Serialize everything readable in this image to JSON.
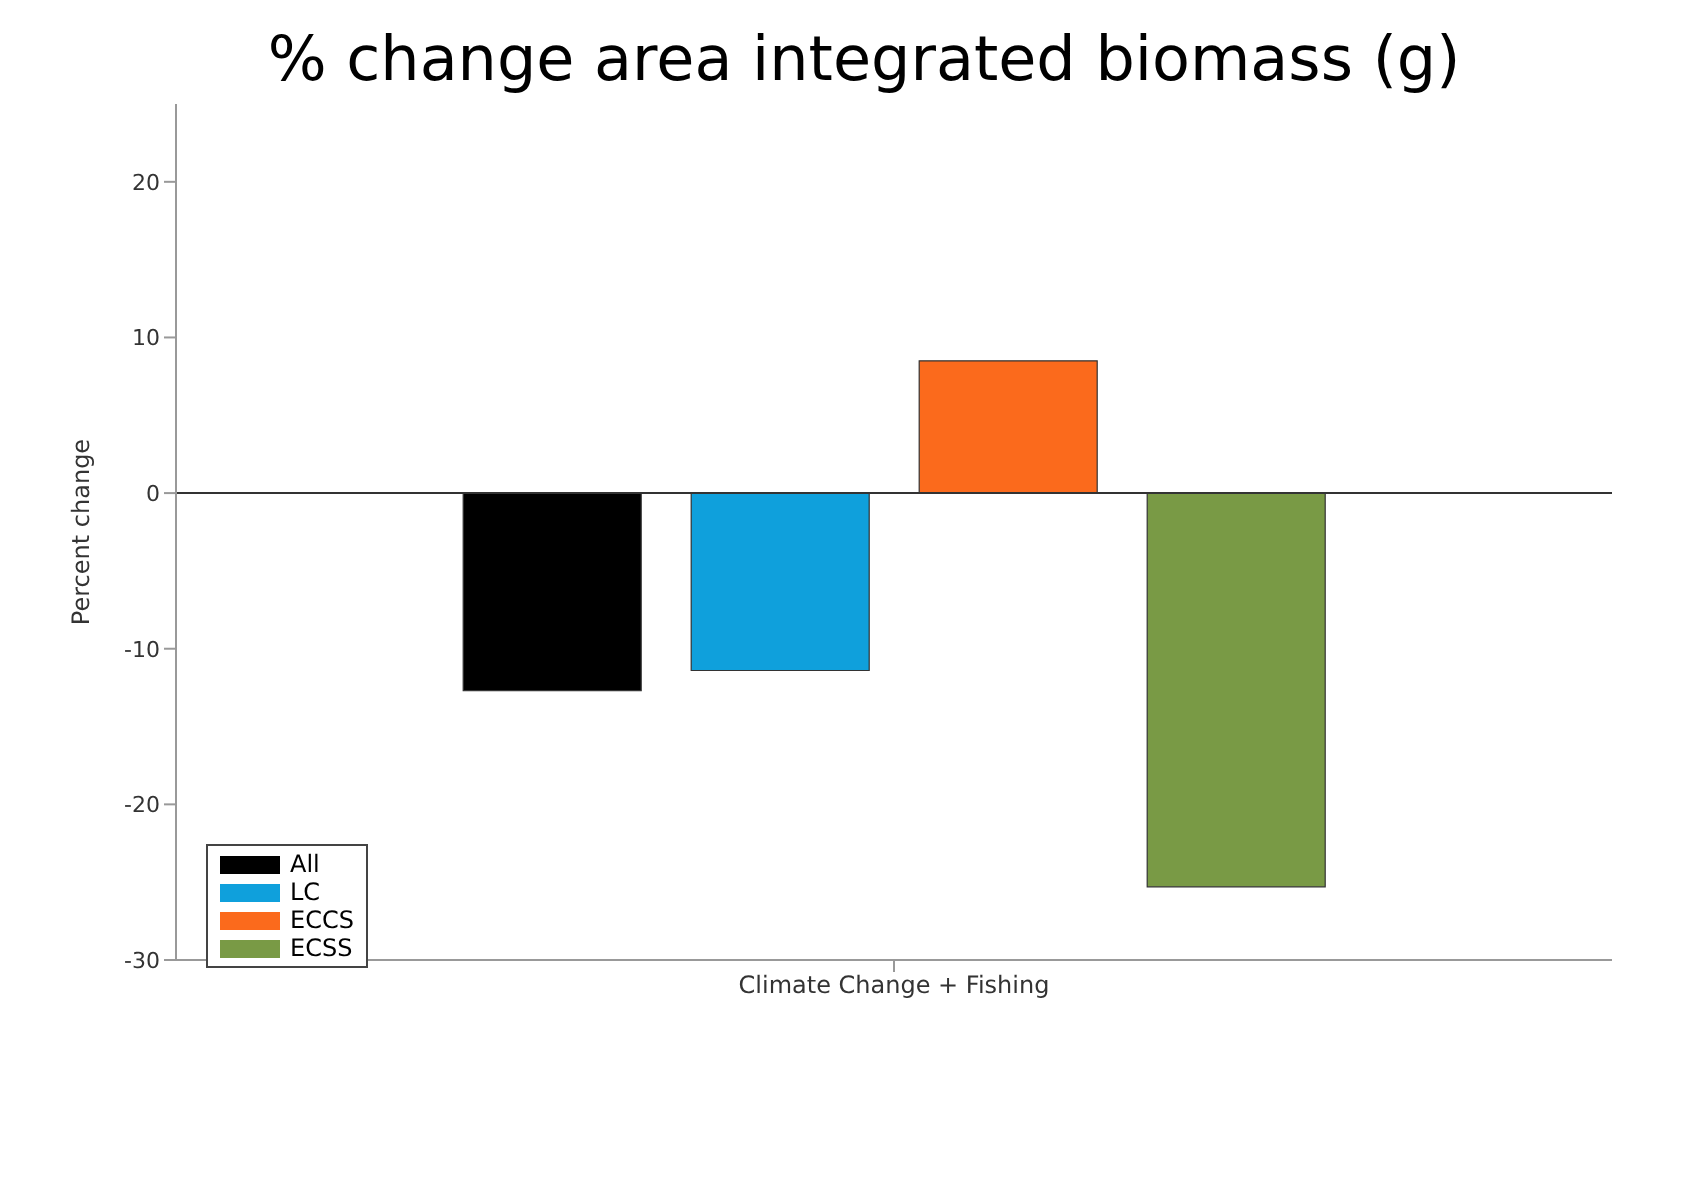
{
  "chart_data": {
    "type": "bar",
    "title": "% change area integrated biomass (g)",
    "ylabel": "Percent change",
    "categories": [
      "Climate Change + Fishing"
    ],
    "series": [
      {
        "name": "All",
        "color": "#000000",
        "values": [
          -12.7
        ]
      },
      {
        "name": "LC",
        "color": "#0fa0dc",
        "values": [
          -11.4
        ]
      },
      {
        "name": "ECCS",
        "color": "#fb6a1c",
        "values": [
          8.5
        ]
      },
      {
        "name": "ECSS",
        "color": "#799a45",
        "values": [
          -25.3
        ]
      }
    ],
    "ylim": [
      -30,
      25
    ],
    "yticks": [
      -30,
      -20,
      -10,
      0,
      10,
      20
    ],
    "ref_lines": [
      {
        "axis": "y",
        "value": 0,
        "color": "#333333"
      }
    ],
    "grid": false,
    "legend": "bottom left"
  }
}
